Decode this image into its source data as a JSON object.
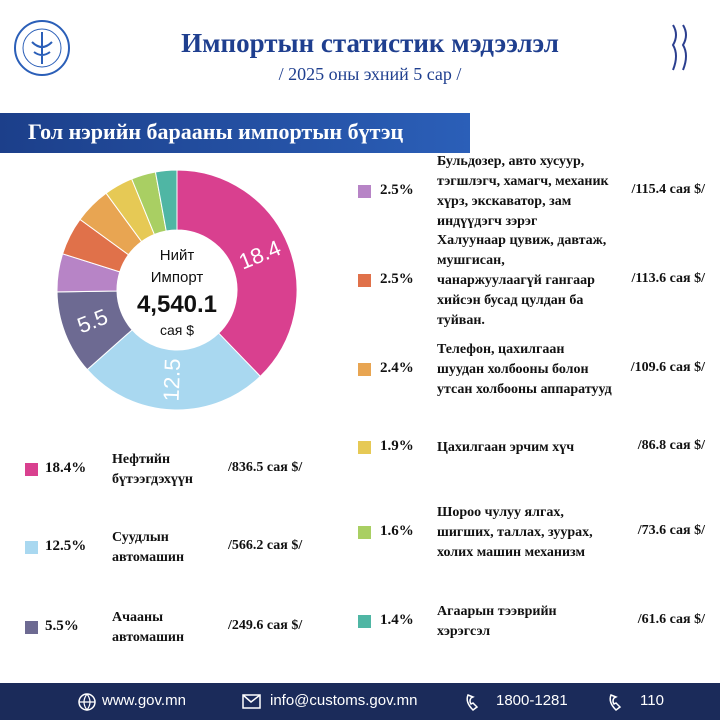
{
  "header": {
    "title": "Импортын статистик мэдээлэл",
    "subtitle": "/ 2025 оны эхний 5 сар /"
  },
  "section_title": "Гол нэрийн барааны импортын бүтэц",
  "chart_data": {
    "type": "pie",
    "center_lines": [
      "Нийт",
      "Импорт"
    ],
    "total": "4,540.1",
    "unit": "сая $",
    "categories": [
      "Нефтийн бүтээгдэхүүн",
      "Суудлын автомашин",
      "Ачааны автомашин",
      "Бульдозер, авто хусуур, тэгшлэгч, хамагч, механик хүрз, экскаватор, зам индүүдэгч зэрэг",
      "Халуунаар цувиж, давтаж, мушгисан, чанаржуулаагүй гангаар хийсэн бусад цулдан ба туйван.",
      "Телефон, цахилгаан шуудан холбооны болон утсан холбооны аппаратууд",
      "Цахилгаан эрчим хүч",
      "Шороо чулуу ялгах, шигших, таллах, зуурах, холих машин механизм",
      "Агаарын тээврийн хэрэгсэл"
    ],
    "values": [
      18.4,
      12.5,
      5.5,
      2.5,
      2.5,
      2.4,
      1.9,
      1.6,
      1.4
    ],
    "value_labels": [
      "18.4%",
      "12.5%",
      "5.5%",
      "2.5%",
      "2.5%",
      "2.4%",
      "1.9%",
      "1.6%",
      "1.4%"
    ],
    "amount_labels": [
      "/836.5 сая $/",
      "/566.2 сая $/",
      "/249.6 сая $/",
      "/115.4 сая $/",
      "/113.6 сая $/",
      "/109.6 сая $/",
      "/86.8 сая $/",
      "/73.6 сая $/",
      "/61.6 сая $/"
    ],
    "colors": [
      "#d9408f",
      "#a9d8f0",
      "#6d6a92",
      "#b784c6",
      "#e0714a",
      "#e8a552",
      "#e6c955",
      "#a9cf63",
      "#4fb6a4"
    ]
  },
  "footer": {
    "website": "www.gov.mn",
    "email": "info@customs.gov.mn",
    "phone": "1800-1281",
    "hotline": "110"
  }
}
